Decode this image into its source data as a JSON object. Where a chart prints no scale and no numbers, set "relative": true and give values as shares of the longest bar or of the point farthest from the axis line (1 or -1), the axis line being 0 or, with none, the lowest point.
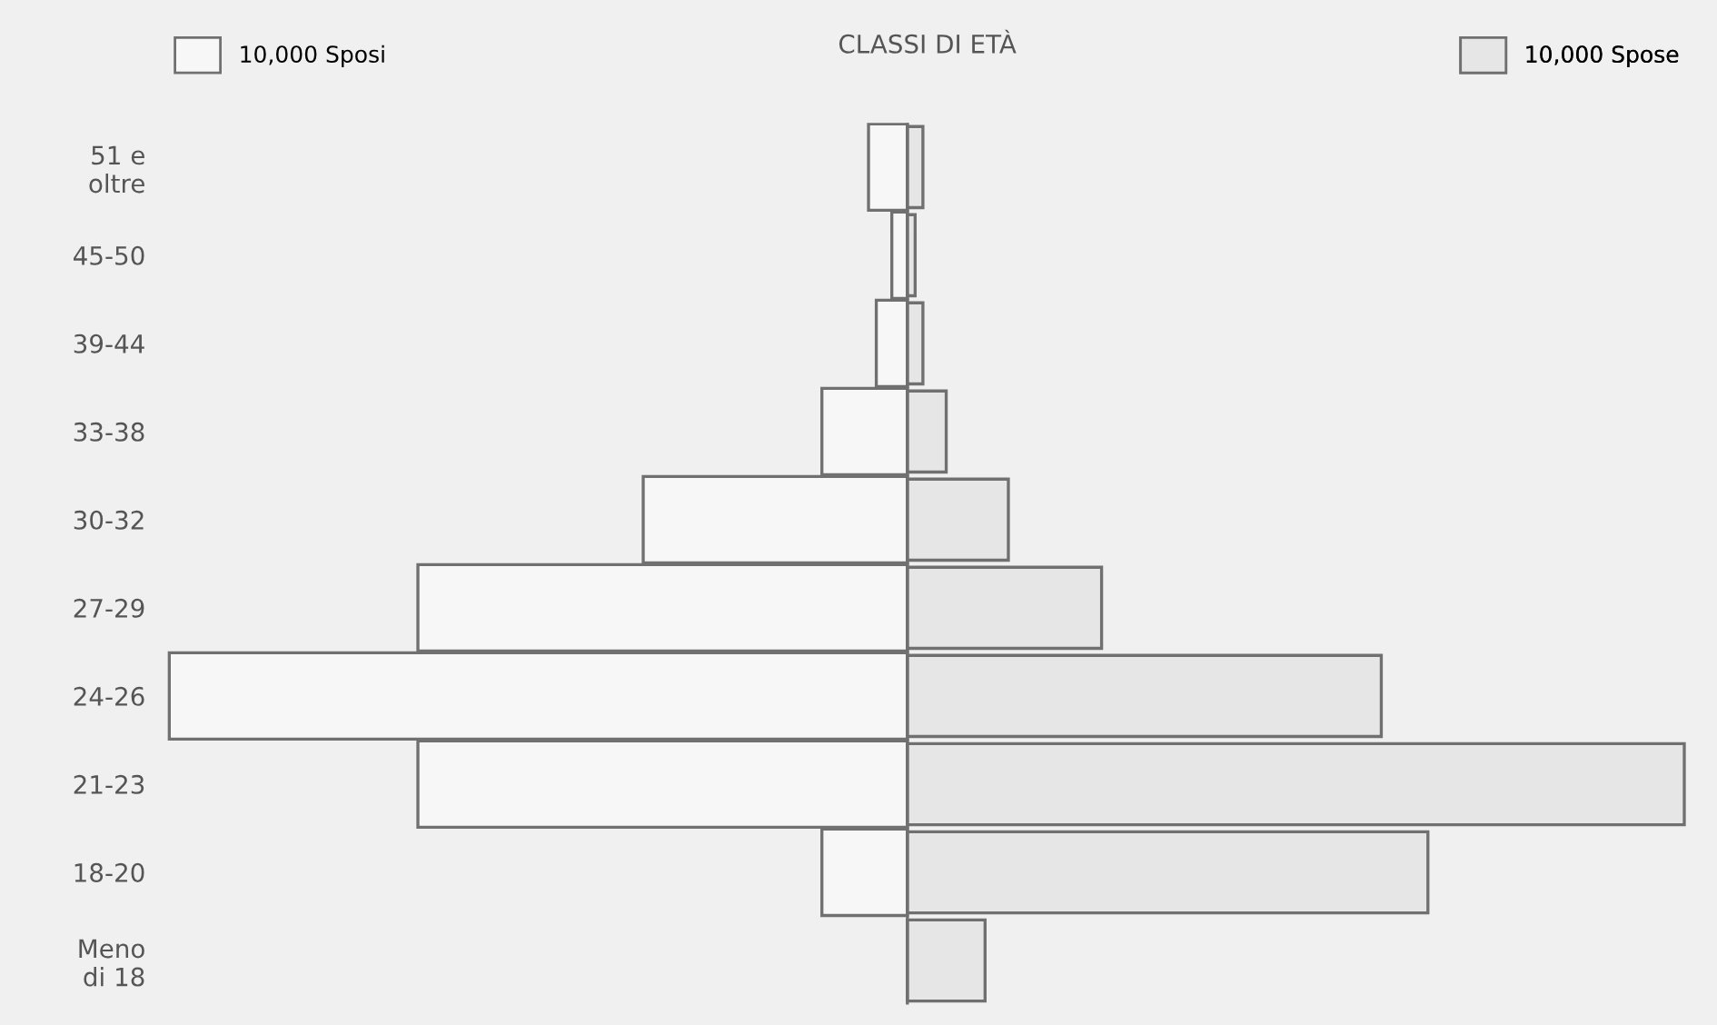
{
  "chart_data": {
    "type": "bar",
    "orientation": "horizontal",
    "relative": true,
    "title": "CLASSI DI ETÀ",
    "categories": [
      "51 e\noltre",
      "45-50",
      "39-44",
      "33-38",
      "30-32",
      "27-29",
      "24-26",
      "21-23",
      "18-20",
      "Meno\ndi 18"
    ],
    "series": [
      {
        "name": "10,000 Sposi",
        "color": "#f7f7f7",
        "values": [
          -0.05,
          -0.02,
          -0.04,
          -0.11,
          -0.34,
          -0.63,
          -0.95,
          -0.63,
          -0.11,
          0.0
        ]
      },
      {
        "name": "10,000 Spose",
        "color": "#e6e6e6",
        "values": [
          0.02,
          0.01,
          0.02,
          0.05,
          0.13,
          0.25,
          0.61,
          1.0,
          0.67,
          0.1
        ]
      }
    ],
    "legend": "top"
  }
}
